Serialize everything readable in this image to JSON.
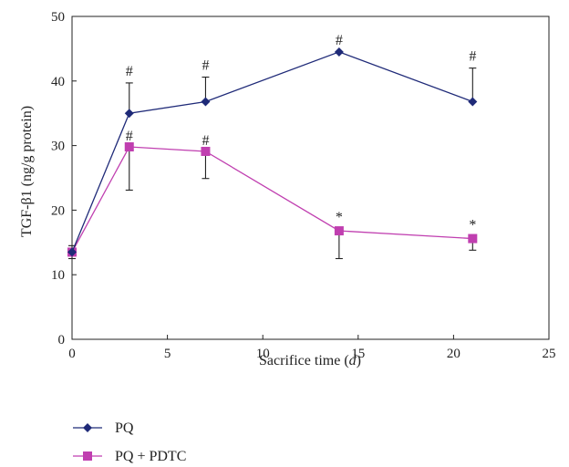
{
  "chart_data": {
    "type": "line",
    "xlabel": "Sacrifice time",
    "xlabel_unit": "d",
    "ylabel": "TGF-β1 (ng/g protein)",
    "xlim": [
      0,
      25
    ],
    "ylim": [
      0,
      50
    ],
    "xticks": [
      0,
      5,
      10,
      15,
      20,
      25
    ],
    "yticks": [
      0,
      10,
      20,
      30,
      40,
      50
    ],
    "grid": false,
    "legend_position": "bottom-left",
    "series": [
      {
        "name": "PQ",
        "color": "#1f2a78",
        "marker": "diamond",
        "x": [
          0,
          3,
          7,
          14,
          21
        ],
        "y": [
          13.5,
          35,
          36.8,
          44.5,
          36.8
        ],
        "error": [
          1.0,
          4.7,
          3.8,
          0,
          5.2
        ],
        "annotations": [
          "",
          "#",
          "#",
          "#",
          "#"
        ]
      },
      {
        "name": "PQ + PDTC",
        "color": "#c03fb0",
        "marker": "square",
        "x": [
          0,
          3,
          7,
          14,
          21
        ],
        "y": [
          13.5,
          29.8,
          29.1,
          16.8,
          15.6
        ],
        "error": [
          1.0,
          6.7,
          4.2,
          4.3,
          1.8
        ],
        "annotations": [
          "",
          "#",
          "#",
          "*",
          "*"
        ]
      }
    ]
  }
}
